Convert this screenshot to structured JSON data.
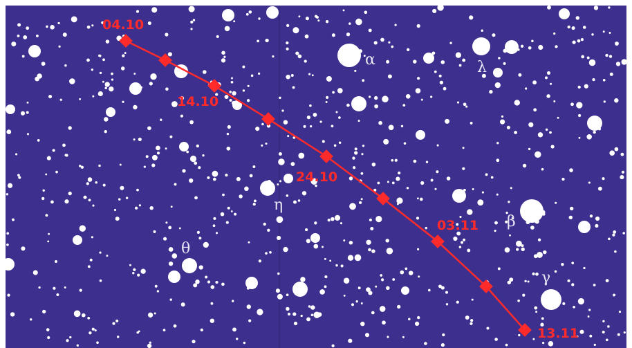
{
  "colors": {
    "sky": "#3d2f8e",
    "star": "#ffffff",
    "path": "#ff2b2b",
    "star_label": "#e8e6f4"
  },
  "stars": {
    "alpha": "α",
    "lambda": "λ",
    "eta": "η",
    "beta": "β",
    "theta": "θ",
    "gamma": "γ"
  },
  "dates": [
    "04.10",
    "14.10",
    "24.10",
    "03.11",
    "13.11"
  ]
}
